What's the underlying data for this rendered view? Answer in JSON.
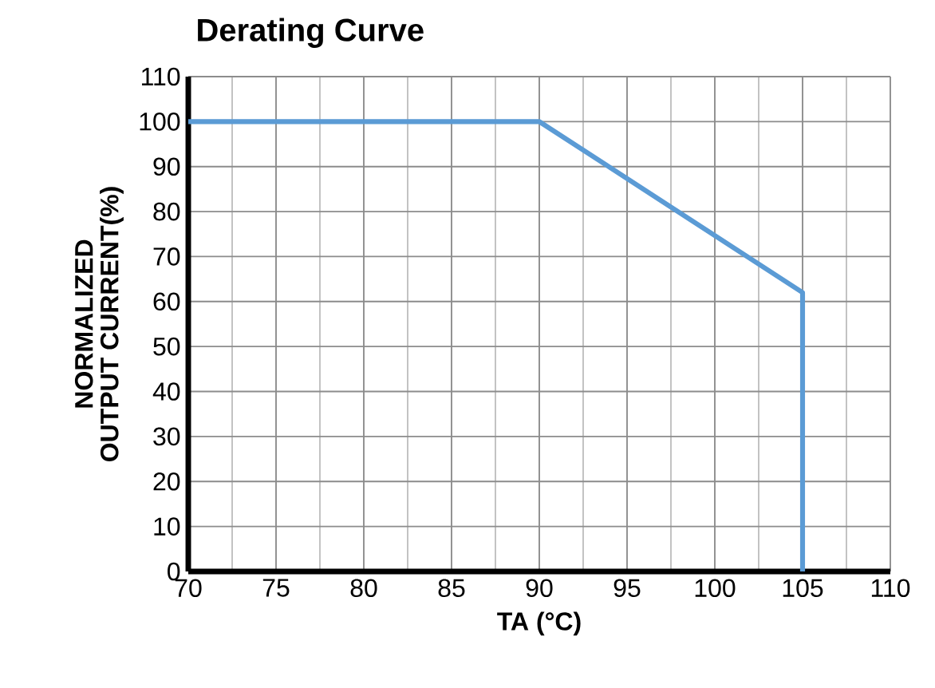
{
  "chart_data": {
    "type": "line",
    "title": "Derating Curve",
    "xlabel": "TA (°C)",
    "ylabel": "NORMALIZED OUTPUT CURRENT(%)",
    "series": [
      {
        "color": "#5b9bd5",
        "x": [
          70,
          90,
          105,
          105
        ],
        "values": [
          100,
          100,
          62,
          0
        ]
      }
    ],
    "xlim": [
      70,
      110
    ],
    "xticks": [
      70,
      75,
      80,
      85,
      90,
      95,
      100,
      105,
      110
    ],
    "ylim": [
      0,
      110
    ],
    "yticks": [
      0,
      10,
      20,
      30,
      40,
      50,
      60,
      70,
      80,
      90,
      100,
      110
    ],
    "grid": true,
    "marker": "none",
    "line_style": "solid"
  }
}
